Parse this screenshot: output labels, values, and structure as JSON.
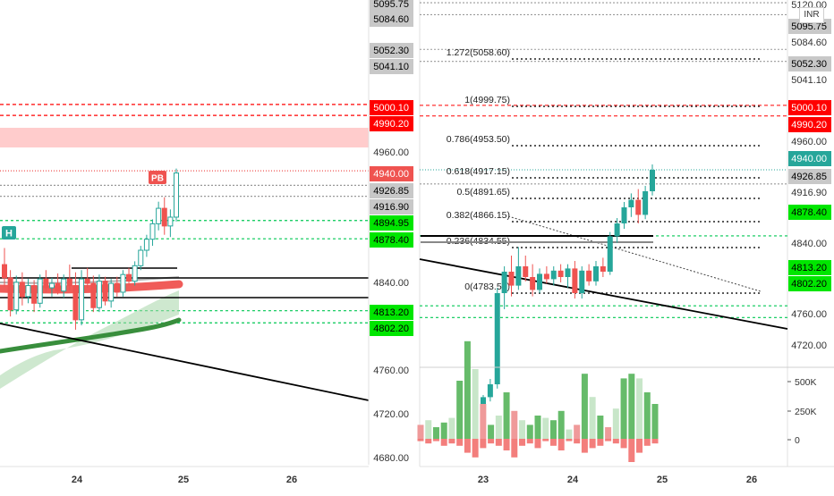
{
  "app": {
    "currency_badge": "INR",
    "accent_colors": {
      "up": "#26a69a",
      "down": "#ef5350",
      "support": "#00e676",
      "resistance": "#ff0000",
      "neutral": "#c8c8c8"
    }
  },
  "left_panel": {
    "x_ticks": [
      "24",
      "25",
      "26"
    ],
    "markers": [
      {
        "label": "H",
        "color": "#26a69a"
      },
      {
        "label": "PB",
        "color": "#ef5350"
      }
    ],
    "price_tags": [
      {
        "value": "5095.75",
        "kind": "neutral"
      },
      {
        "value": "5084.60",
        "kind": "neutral"
      },
      {
        "value": "5052.30",
        "kind": "neutral"
      },
      {
        "value": "5041.10",
        "kind": "neutral"
      },
      {
        "value": "5000.10",
        "kind": "resistance"
      },
      {
        "value": "4990.20",
        "kind": "resistance"
      },
      {
        "value": "4960.00",
        "kind": "axis"
      },
      {
        "value": "4940.00",
        "kind": "current"
      },
      {
        "value": "4926.85",
        "kind": "neutral"
      },
      {
        "value": "4916.90",
        "kind": "neutral"
      },
      {
        "value": "4894.95",
        "kind": "support"
      },
      {
        "value": "4878.40",
        "kind": "support"
      },
      {
        "value": "4840.00",
        "kind": "axis"
      },
      {
        "value": "4813.20",
        "kind": "support"
      },
      {
        "value": "4802.20",
        "kind": "support"
      },
      {
        "value": "4760.00",
        "kind": "axis"
      },
      {
        "value": "4720.00",
        "kind": "axis"
      },
      {
        "value": "4680.00",
        "kind": "axis"
      }
    ]
  },
  "right_panel": {
    "x_ticks": [
      "23",
      "24",
      "25",
      "26"
    ],
    "fib_levels": [
      {
        "label": "1.272(5058.60)"
      },
      {
        "label": "1(4999.75)"
      },
      {
        "label": "0.786(4953.50)"
      },
      {
        "label": "0.618(4917.15)"
      },
      {
        "label": "0.5(4891.65)"
      },
      {
        "label": "0.382(4866.15)"
      },
      {
        "label": "0.236(4834.55)"
      },
      {
        "label": "0(4783.55)"
      }
    ],
    "price_tags": [
      {
        "value": "5120.00",
        "kind": "axis"
      },
      {
        "value": "5095.75",
        "kind": "neutral"
      },
      {
        "value": "5084.60",
        "kind": "axis"
      },
      {
        "value": "5052.30",
        "kind": "neutral"
      },
      {
        "value": "5041.10",
        "kind": "axis"
      },
      {
        "value": "5000.10",
        "kind": "resistance"
      },
      {
        "value": "4990.20",
        "kind": "resistance"
      },
      {
        "value": "4960.00",
        "kind": "axis"
      },
      {
        "value": "4940.00",
        "kind": "current"
      },
      {
        "value": "4926.85",
        "kind": "neutral"
      },
      {
        "value": "4916.90",
        "kind": "axis"
      },
      {
        "value": "4878.40",
        "kind": "support"
      },
      {
        "value": "4840.00",
        "kind": "axis"
      },
      {
        "value": "4813.20",
        "kind": "support"
      },
      {
        "value": "4802.20",
        "kind": "support"
      },
      {
        "value": "4760.00",
        "kind": "axis"
      },
      {
        "value": "4720.00",
        "kind": "axis"
      }
    ],
    "volume_ticks": [
      "500K",
      "250K",
      "0"
    ]
  },
  "chart_data": [
    {
      "type": "candlestick",
      "panel": "left",
      "x_ticks": [
        "24",
        "25",
        "26"
      ],
      "y_ticks": [
        4960,
        4840,
        4760,
        4720,
        4680
      ],
      "ylim": [
        4670,
        5100
      ],
      "grid": false,
      "horizontal_levels": [
        5095.75,
        5084.6,
        5052.3,
        5041.1,
        5000.1,
        4990.2,
        4940,
        4926.85,
        4916.9,
        4894.95,
        4878.4,
        4813.2,
        4802.2
      ],
      "candles": [
        {
          "o": 4855,
          "h": 4870,
          "l": 4835,
          "c": 4843
        },
        {
          "o": 4843,
          "h": 4850,
          "l": 4808,
          "c": 4814
        },
        {
          "o": 4814,
          "h": 4845,
          "l": 4810,
          "c": 4839
        },
        {
          "o": 4839,
          "h": 4848,
          "l": 4818,
          "c": 4826
        },
        {
          "o": 4826,
          "h": 4842,
          "l": 4820,
          "c": 4836
        },
        {
          "o": 4836,
          "h": 4841,
          "l": 4812,
          "c": 4820
        },
        {
          "o": 4820,
          "h": 4846,
          "l": 4816,
          "c": 4842
        },
        {
          "o": 4842,
          "h": 4850,
          "l": 4830,
          "c": 4834
        },
        {
          "o": 4834,
          "h": 4843,
          "l": 4826,
          "c": 4838
        },
        {
          "o": 4838,
          "h": 4847,
          "l": 4828,
          "c": 4831
        },
        {
          "o": 4831,
          "h": 4846,
          "l": 4825,
          "c": 4842
        },
        {
          "o": 4842,
          "h": 4855,
          "l": 4832,
          "c": 4836
        },
        {
          "o": 4836,
          "h": 4848,
          "l": 4796,
          "c": 4805
        },
        {
          "o": 4805,
          "h": 4850,
          "l": 4800,
          "c": 4842
        },
        {
          "o": 4842,
          "h": 4852,
          "l": 4834,
          "c": 4838
        },
        {
          "o": 4838,
          "h": 4845,
          "l": 4812,
          "c": 4816
        },
        {
          "o": 4816,
          "h": 4846,
          "l": 4812,
          "c": 4840
        },
        {
          "o": 4840,
          "h": 4844,
          "l": 4818,
          "c": 4822
        },
        {
          "o": 4822,
          "h": 4842,
          "l": 4816,
          "c": 4838
        },
        {
          "o": 4838,
          "h": 4844,
          "l": 4826,
          "c": 4830
        },
        {
          "o": 4830,
          "h": 4850,
          "l": 4826,
          "c": 4846
        },
        {
          "o": 4846,
          "h": 4852,
          "l": 4836,
          "c": 4840
        },
        {
          "o": 4840,
          "h": 4858,
          "l": 4836,
          "c": 4854
        },
        {
          "o": 4854,
          "h": 4872,
          "l": 4850,
          "c": 4868
        },
        {
          "o": 4868,
          "h": 4882,
          "l": 4862,
          "c": 4878
        },
        {
          "o": 4878,
          "h": 4896,
          "l": 4872,
          "c": 4892
        },
        {
          "o": 4892,
          "h": 4912,
          "l": 4886,
          "c": 4906
        },
        {
          "o": 4906,
          "h": 4916,
          "l": 4882,
          "c": 4890
        },
        {
          "o": 4890,
          "h": 4905,
          "l": 4880,
          "c": 4898
        },
        {
          "o": 4898,
          "h": 4942,
          "l": 4894,
          "c": 4938
        }
      ]
    },
    {
      "type": "candlestick",
      "panel": "right",
      "x_ticks": [
        "23",
        "24",
        "25",
        "26"
      ],
      "y_ticks": [
        5120,
        4960,
        4840,
        4760,
        4720
      ],
      "ylim": [
        4705,
        5125
      ],
      "grid": false,
      "fib_levels": [
        {
          "ratio": "1.272",
          "price": 5058.6
        },
        {
          "ratio": "1",
          "price": 4999.75
        },
        {
          "ratio": "0.786",
          "price": 4953.5
        },
        {
          "ratio": "0.618",
          "price": 4917.15
        },
        {
          "ratio": "0.5",
          "price": 4891.65
        },
        {
          "ratio": "0.382",
          "price": 4866.15
        },
        {
          "ratio": "0.236",
          "price": 4834.55
        },
        {
          "ratio": "0",
          "price": 4783.55
        }
      ],
      "candles": [
        {
          "o": 4705,
          "h": 4730,
          "l": 4705,
          "c": 4728
        },
        {
          "o": 4728,
          "h": 4745,
          "l": 4724,
          "c": 4740
        },
        {
          "o": 4740,
          "h": 4830,
          "l": 4736,
          "c": 4825
        },
        {
          "o": 4825,
          "h": 4850,
          "l": 4810,
          "c": 4845
        },
        {
          "o": 4845,
          "h": 4860,
          "l": 4822,
          "c": 4832
        },
        {
          "o": 4832,
          "h": 4868,
          "l": 4828,
          "c": 4850
        },
        {
          "o": 4850,
          "h": 4860,
          "l": 4836,
          "c": 4840
        },
        {
          "o": 4840,
          "h": 4852,
          "l": 4822,
          "c": 4828
        },
        {
          "o": 4828,
          "h": 4848,
          "l": 4825,
          "c": 4843
        },
        {
          "o": 4843,
          "h": 4850,
          "l": 4834,
          "c": 4838
        },
        {
          "o": 4838,
          "h": 4850,
          "l": 4832,
          "c": 4846
        },
        {
          "o": 4846,
          "h": 4852,
          "l": 4835,
          "c": 4840
        },
        {
          "o": 4840,
          "h": 4852,
          "l": 4830,
          "c": 4848
        },
        {
          "o": 4848,
          "h": 4855,
          "l": 4820,
          "c": 4825
        },
        {
          "o": 4825,
          "h": 4850,
          "l": 4820,
          "c": 4846
        },
        {
          "o": 4846,
          "h": 4852,
          "l": 4832,
          "c": 4836
        },
        {
          "o": 4836,
          "h": 4855,
          "l": 4832,
          "c": 4850
        },
        {
          "o": 4850,
          "h": 4858,
          "l": 4840,
          "c": 4845
        },
        {
          "o": 4845,
          "h": 4882,
          "l": 4842,
          "c": 4878
        },
        {
          "o": 4878,
          "h": 4895,
          "l": 4872,
          "c": 4890
        },
        {
          "o": 4890,
          "h": 4910,
          "l": 4885,
          "c": 4905
        },
        {
          "o": 4905,
          "h": 4918,
          "l": 4896,
          "c": 4912
        },
        {
          "o": 4912,
          "h": 4922,
          "l": 4890,
          "c": 4898
        },
        {
          "o": 4898,
          "h": 4925,
          "l": 4894,
          "c": 4920
        },
        {
          "o": 4920,
          "h": 4945,
          "l": 4916,
          "c": 4940
        }
      ]
    },
    {
      "type": "bar",
      "panel": "right-volume",
      "y_ticks": [
        "500K",
        "250K",
        "0"
      ],
      "ylim": [
        -200000,
        550000
      ],
      "series": [
        {
          "values": [
            60000,
            80000,
            50000,
            70000,
            90000,
            250000,
            420000,
            300000,
            150000,
            60000,
            100000,
            200000,
            120000,
            80000,
            60000,
            100000,
            90000,
            80000,
            120000,
            40000,
            60000,
            280000,
            180000,
            100000,
            50000,
            130000,
            260000,
            280000,
            260000,
            200000,
            150000
          ]
        },
        {
          "values": [
            -10000,
            -20000,
            -10000,
            -30000,
            -20000,
            -30000,
            -60000,
            -80000,
            -40000,
            -20000,
            -30000,
            -50000,
            -80000,
            -30000,
            -20000,
            -40000,
            -10000,
            -30000,
            -50000,
            -10000,
            -20000,
            -60000,
            -40000,
            -30000,
            -10000,
            -20000,
            -40000,
            -100000,
            -60000,
            -30000,
            -20000
          ]
        }
      ]
    }
  ]
}
